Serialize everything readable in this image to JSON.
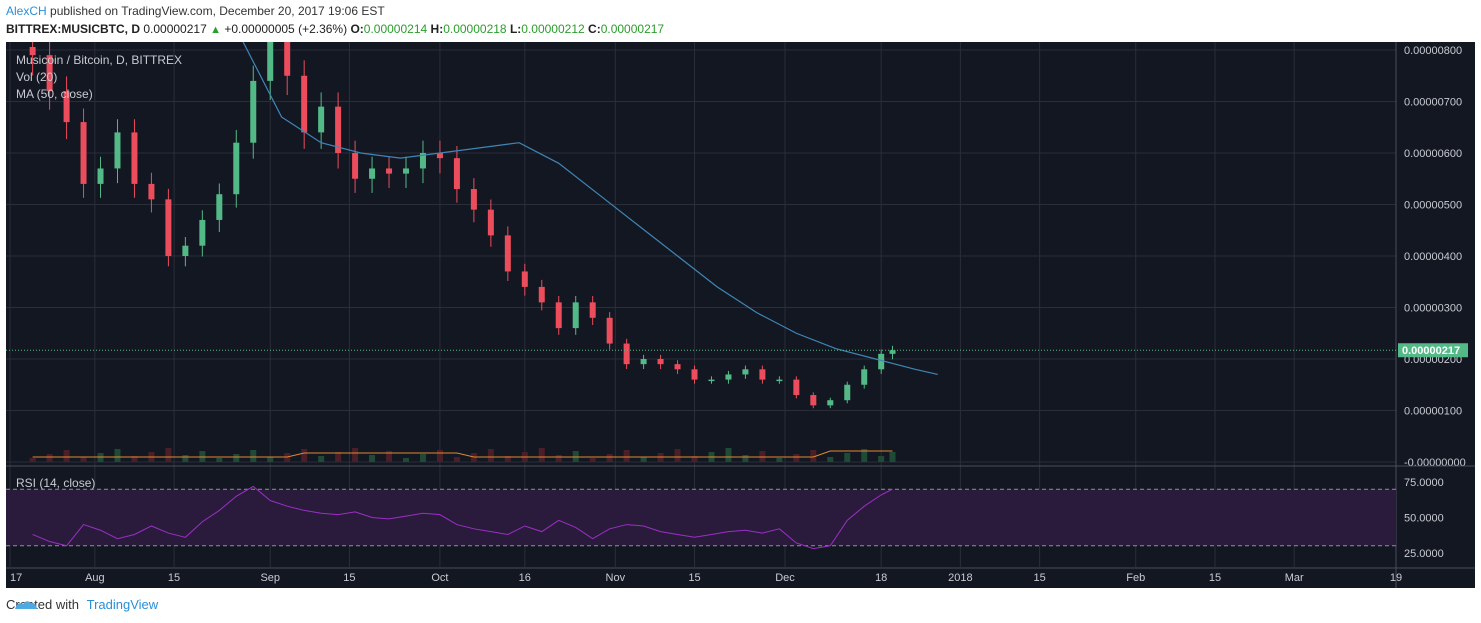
{
  "header": {
    "author": "AlexCH",
    "published_text": " published on TradingView.com, December 20, 2017 19:06 EST",
    "symbol": "BITTREX:MUSICBTC, D",
    "last": "0.00000217",
    "change": "+0.00000005 (+2.36%)",
    "o_label": "O:",
    "o_value": "0.00000214",
    "h_label": "H:",
    "h_value": "0.00000218",
    "l_label": "L:",
    "l_value": "0.00000212",
    "c_label": "C:",
    "c_value": "0.00000217",
    "up_arrow": "▲"
  },
  "legend": {
    "title": "Musicoin / Bitcoin, D, BITTREX",
    "vol": "Vol (20)",
    "ma": "MA (50, close)",
    "rsi": "RSI (14, close)"
  },
  "footer": {
    "created_with": "Created with",
    "brand": "TradingView"
  },
  "colors": {
    "background": "#131722",
    "up": "#53b987",
    "down": "#eb4d5c",
    "ma": "#3f86b5",
    "vol_ma": "#e08a2e",
    "rsi": "#9b2fc4",
    "rsi_band": "#2a1b3d",
    "grid": "#2a2e39",
    "price_line": "#53b987"
  },
  "chart_data": {
    "type": "candlestick",
    "title": "Musicoin / Bitcoin, D, BITTREX",
    "price_axis": {
      "min": 0.0,
      "max": 8e-06,
      "ticks": [
        "0.00000800",
        "0.00000700",
        "0.00000600",
        "0.00000500",
        "0.00000400",
        "0.00000300",
        "0.00000200",
        "0.00000100",
        "-0.00000000"
      ],
      "tick_values": [
        8e-06,
        7e-06,
        6e-06,
        5e-06,
        4e-06,
        3e-06,
        2e-06,
        1e-06,
        0.0
      ]
    },
    "time_axis": {
      "start": "2017-07-21",
      "end": "2018-03-19",
      "ticks": [
        "17",
        "Aug",
        "15",
        "Sep",
        "15",
        "Oct",
        "16",
        "Nov",
        "15",
        "Dec",
        "18",
        "2018",
        "15",
        "Feb",
        "15",
        "Mar",
        "19"
      ],
      "tick_dates": [
        "2017-07-17",
        "2017-08-01",
        "2017-08-15",
        "2017-09-01",
        "2017-09-15",
        "2017-10-01",
        "2017-10-16",
        "2017-11-01",
        "2017-11-15",
        "2017-12-01",
        "2017-12-18",
        "2018-01-01",
        "2018-01-15",
        "2018-02-01",
        "2018-02-15",
        "2018-03-01",
        "2018-03-19"
      ]
    },
    "last_price_label": "0.00000217",
    "last_price": 2.17e-06,
    "close_series": {
      "dates": [
        "2017-07-21",
        "2017-07-24",
        "2017-07-27",
        "2017-07-30",
        "2017-08-02",
        "2017-08-05",
        "2017-08-08",
        "2017-08-11",
        "2017-08-14",
        "2017-08-17",
        "2017-08-20",
        "2017-08-23",
        "2017-08-26",
        "2017-08-29",
        "2017-09-01",
        "2017-09-04",
        "2017-09-07",
        "2017-09-10",
        "2017-09-13",
        "2017-09-16",
        "2017-09-19",
        "2017-09-22",
        "2017-09-25",
        "2017-09-28",
        "2017-10-01",
        "2017-10-04",
        "2017-10-07",
        "2017-10-10",
        "2017-10-13",
        "2017-10-16",
        "2017-10-19",
        "2017-10-22",
        "2017-10-25",
        "2017-10-28",
        "2017-10-31",
        "2017-11-03",
        "2017-11-06",
        "2017-11-09",
        "2017-11-12",
        "2017-11-15",
        "2017-11-18",
        "2017-11-21",
        "2017-11-24",
        "2017-11-27",
        "2017-11-30",
        "2017-12-03",
        "2017-12-06",
        "2017-12-09",
        "2017-12-12",
        "2017-12-15",
        "2017-12-18",
        "2017-12-20"
      ],
      "close": [
        7.9e-06,
        7.2e-06,
        6.6e-06,
        5.4e-06,
        5.7e-06,
        6.4e-06,
        5.4e-06,
        5.1e-06,
        4e-06,
        4.2e-06,
        4.7e-06,
        5.2e-06,
        6.2e-06,
        7.4e-06,
        8.2e-06,
        7.5e-06,
        6.4e-06,
        6.9e-06,
        6e-06,
        5.5e-06,
        5.7e-06,
        5.6e-06,
        5.7e-06,
        6e-06,
        5.9e-06,
        5.3e-06,
        4.9e-06,
        4.4e-06,
        3.7e-06,
        3.4e-06,
        3.1e-06,
        2.6e-06,
        3.1e-06,
        2.8e-06,
        2.3e-06,
        1.9e-06,
        2e-06,
        1.9e-06,
        1.8e-06,
        1.6e-06,
        1.6e-06,
        1.7e-06,
        1.8e-06,
        1.6e-06,
        1.6e-06,
        1.3e-06,
        1.1e-06,
        1.2e-06,
        1.5e-06,
        1.8e-06,
        2.1e-06,
        2.17e-06
      ]
    },
    "ma50": {
      "dates": [
        "2017-08-27",
        "2017-09-03",
        "2017-09-10",
        "2017-09-17",
        "2017-09-24",
        "2017-10-01",
        "2017-10-08",
        "2017-10-15",
        "2017-10-22",
        "2017-10-29",
        "2017-11-05",
        "2017-11-12",
        "2017-11-19",
        "2017-11-26",
        "2017-12-03",
        "2017-12-10",
        "2017-12-17",
        "2017-12-24",
        "2017-12-28"
      ],
      "values": [
        8.2e-06,
        6.7e-06,
        6.2e-06,
        6e-06,
        5.9e-06,
        6e-06,
        6.1e-06,
        6.2e-06,
        5.8e-06,
        5.2e-06,
        4.6e-06,
        4e-06,
        3.4e-06,
        2.9e-06,
        2.5e-06,
        2.2e-06,
        2e-06,
        1.8e-06,
        1.7e-06
      ]
    },
    "rsi_axis": {
      "ticks": [
        "75.0000",
        "50.0000",
        "25.0000"
      ],
      "tick_values": [
        75,
        50,
        25
      ],
      "band": [
        30,
        70
      ]
    },
    "rsi_values": [
      38,
      33,
      30,
      45,
      41,
      35,
      38,
      44,
      39,
      36,
      47,
      55,
      65,
      72,
      62,
      58,
      55,
      53,
      52,
      54,
      50,
      49,
      51,
      53,
      52,
      45,
      42,
      40,
      38,
      44,
      40,
      48,
      43,
      35,
      42,
      45,
      44,
      40,
      38,
      36,
      38,
      40,
      41,
      39,
      42,
      32,
      28,
      30,
      48,
      58,
      66,
      70
    ]
  }
}
